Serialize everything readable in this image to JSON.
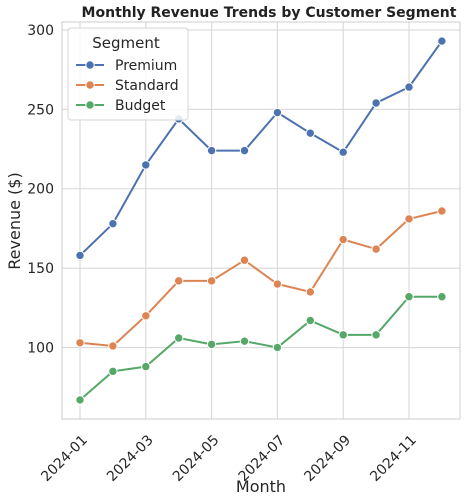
{
  "chart_data": {
    "type": "line",
    "title": "Monthly Revenue Trends by Customer Segment",
    "xlabel": "Month",
    "ylabel": "Revenue ($)",
    "x": [
      "2024-01",
      "2024-02",
      "2024-03",
      "2024-04",
      "2024-05",
      "2024-06",
      "2024-07",
      "2024-08",
      "2024-09",
      "2024-10",
      "2024-11",
      "2024-12"
    ],
    "x_ticks": [
      "2024-01",
      "2024-03",
      "2024-05",
      "2024-07",
      "2024-09",
      "2024-11"
    ],
    "y_ticks": [
      100,
      150,
      200,
      250,
      300
    ],
    "ylim": [
      55,
      305
    ],
    "grid": true,
    "legend_title": "Segment",
    "legend_position": "top-left",
    "series": [
      {
        "name": "Premium",
        "color": "#4c72b0",
        "values": [
          158,
          178,
          215,
          244,
          224,
          224,
          248,
          235,
          223,
          254,
          264,
          293
        ]
      },
      {
        "name": "Standard",
        "color": "#dd8452",
        "values": [
          103,
          101,
          120,
          142,
          142,
          155,
          140,
          135,
          168,
          162,
          181,
          186
        ]
      },
      {
        "name": "Budget",
        "color": "#55a868",
        "values": [
          67,
          85,
          88,
          106,
          102,
          104,
          100,
          117,
          108,
          108,
          132,
          132
        ]
      }
    ]
  }
}
